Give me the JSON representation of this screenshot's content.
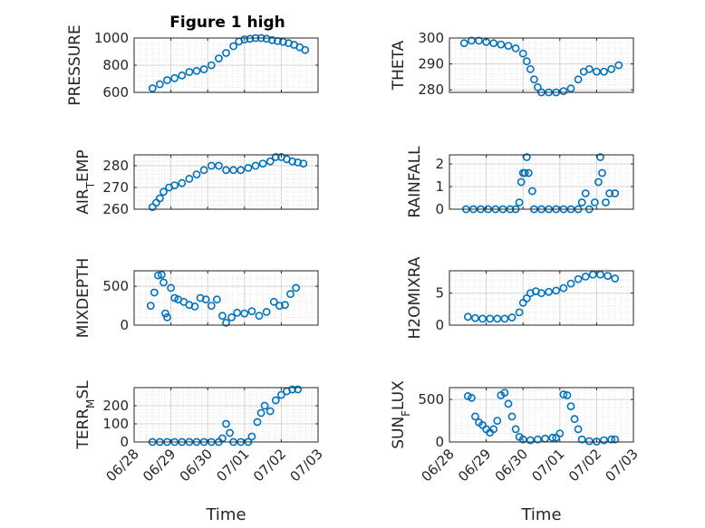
{
  "figure_title": "Figure 1 high",
  "x_label": "Time",
  "x_ticks": [
    "06/28",
    "06/29",
    "06/30",
    "07/01",
    "07/02",
    "07/03"
  ],
  "colors": {
    "marker": "#0072bd",
    "axis": "#262626",
    "grid": "#dcdcdc",
    "background": "#ffffff"
  },
  "chart_data": [
    {
      "type": "scatter",
      "ylabel": "PRESSURE",
      "title": "Figure 1 high",
      "ylim": [
        600,
        1000
      ],
      "yticks": [
        600,
        800,
        1000
      ],
      "xlim": [
        0,
        5
      ],
      "grid": true,
      "series": [
        {
          "values": [
            [
              0.5,
              630
            ],
            [
              0.7,
              660
            ],
            [
              0.9,
              690
            ],
            [
              1.1,
              705
            ],
            [
              1.3,
              725
            ],
            [
              1.5,
              750
            ],
            [
              1.7,
              758
            ],
            [
              1.9,
              770
            ],
            [
              2.1,
              800
            ],
            [
              2.3,
              850
            ],
            [
              2.5,
              890
            ],
            [
              2.7,
              940
            ],
            [
              2.85,
              975
            ],
            [
              3.0,
              990
            ],
            [
              3.15,
              995
            ],
            [
              3.3,
              1000
            ],
            [
              3.45,
              1000
            ],
            [
              3.6,
              995
            ],
            [
              3.75,
              985
            ],
            [
              3.9,
              978
            ],
            [
              4.05,
              972
            ],
            [
              4.2,
              962
            ],
            [
              4.35,
              950
            ],
            [
              4.5,
              932
            ],
            [
              4.65,
              912
            ]
          ]
        }
      ]
    },
    {
      "type": "scatter",
      "ylabel": "THETA",
      "ylim": [
        279,
        300
      ],
      "yticks": [
        280,
        290,
        300
      ],
      "xlim": [
        0,
        5
      ],
      "grid": true,
      "series": [
        {
          "values": [
            [
              0.4,
              298
            ],
            [
              0.6,
              299
            ],
            [
              0.8,
              299
            ],
            [
              1.0,
              298.5
            ],
            [
              1.2,
              298
            ],
            [
              1.4,
              297.5
            ],
            [
              1.6,
              297
            ],
            [
              1.8,
              296
            ],
            [
              2.0,
              294
            ],
            [
              2.1,
              291
            ],
            [
              2.2,
              288
            ],
            [
              2.3,
              284
            ],
            [
              2.4,
              281
            ],
            [
              2.5,
              279
            ],
            [
              2.7,
              279
            ],
            [
              2.9,
              279
            ],
            [
              3.1,
              279.5
            ],
            [
              3.3,
              280.5
            ],
            [
              3.5,
              284
            ],
            [
              3.65,
              287
            ],
            [
              3.8,
              288
            ],
            [
              4.0,
              287
            ],
            [
              4.2,
              287
            ],
            [
              4.4,
              288
            ],
            [
              4.6,
              289.5
            ]
          ]
        }
      ]
    },
    {
      "type": "scatter",
      "ylabel": "AIR_TEMP",
      "ylim": [
        260,
        285
      ],
      "yticks": [
        260,
        270,
        280
      ],
      "xlim": [
        0,
        5
      ],
      "grid": true,
      "series": [
        {
          "values": [
            [
              0.5,
              261
            ],
            [
              0.6,
              263
            ],
            [
              0.7,
              265
            ],
            [
              0.8,
              268
            ],
            [
              0.95,
              270
            ],
            [
              1.1,
              271
            ],
            [
              1.3,
              272
            ],
            [
              1.5,
              274
            ],
            [
              1.7,
              276
            ],
            [
              1.9,
              278
            ],
            [
              2.1,
              280
            ],
            [
              2.3,
              280
            ],
            [
              2.5,
              278
            ],
            [
              2.7,
              278
            ],
            [
              2.9,
              278
            ],
            [
              3.1,
              279
            ],
            [
              3.3,
              280
            ],
            [
              3.5,
              281
            ],
            [
              3.7,
              282
            ],
            [
              3.85,
              284
            ],
            [
              4.0,
              284
            ],
            [
              4.15,
              283
            ],
            [
              4.3,
              282
            ],
            [
              4.45,
              281.5
            ],
            [
              4.6,
              281
            ]
          ]
        }
      ]
    },
    {
      "type": "scatter",
      "ylabel": "RAINFALL",
      "ylim": [
        0,
        2.4
      ],
      "yticks": [
        0,
        1,
        2
      ],
      "xlim": [
        0,
        5
      ],
      "grid": true,
      "series": [
        {
          "values": [
            [
              0.45,
              0
            ],
            [
              0.65,
              0
            ],
            [
              0.85,
              0
            ],
            [
              1.05,
              0
            ],
            [
              1.25,
              0
            ],
            [
              1.45,
              0
            ],
            [
              1.65,
              0
            ],
            [
              1.8,
              0
            ],
            [
              1.9,
              0.3
            ],
            [
              1.95,
              1.2
            ],
            [
              2.0,
              1.6
            ],
            [
              2.05,
              1.6
            ],
            [
              2.1,
              2.3
            ],
            [
              2.15,
              1.6
            ],
            [
              2.25,
              0.8
            ],
            [
              2.3,
              0
            ],
            [
              2.5,
              0
            ],
            [
              2.7,
              0
            ],
            [
              2.9,
              0
            ],
            [
              3.1,
              0
            ],
            [
              3.3,
              0
            ],
            [
              3.5,
              0
            ],
            [
              3.6,
              0.3
            ],
            [
              3.7,
              0.7
            ],
            [
              3.8,
              0
            ],
            [
              3.95,
              0.3
            ],
            [
              4.05,
              1.2
            ],
            [
              4.1,
              2.3
            ],
            [
              4.15,
              1.6
            ],
            [
              4.25,
              0.3
            ],
            [
              4.35,
              0.7
            ],
            [
              4.5,
              0.7
            ]
          ]
        }
      ]
    },
    {
      "type": "scatter",
      "ylabel": "MIXDEPTH",
      "ylim": [
        0,
        700
      ],
      "yticks": [
        0,
        500
      ],
      "xlim": [
        0,
        5
      ],
      "grid": true,
      "series": [
        {
          "values": [
            [
              0.45,
              250
            ],
            [
              0.55,
              420
            ],
            [
              0.65,
              640
            ],
            [
              0.75,
              650
            ],
            [
              0.8,
              550
            ],
            [
              0.85,
              150
            ],
            [
              0.9,
              100
            ],
            [
              1.0,
              480
            ],
            [
              1.1,
              350
            ],
            [
              1.2,
              330
            ],
            [
              1.35,
              300
            ],
            [
              1.5,
              260
            ],
            [
              1.65,
              240
            ],
            [
              1.8,
              350
            ],
            [
              1.95,
              330
            ],
            [
              2.1,
              250
            ],
            [
              2.25,
              330
            ],
            [
              2.4,
              120
            ],
            [
              2.5,
              30
            ],
            [
              2.65,
              100
            ],
            [
              2.8,
              160
            ],
            [
              3.0,
              150
            ],
            [
              3.2,
              180
            ],
            [
              3.4,
              120
            ],
            [
              3.6,
              170
            ],
            [
              3.8,
              300
            ],
            [
              3.95,
              250
            ],
            [
              4.1,
              260
            ],
            [
              4.25,
              400
            ],
            [
              4.4,
              480
            ]
          ]
        }
      ]
    },
    {
      "type": "scatter",
      "ylabel": "H2OMIXRA",
      "ylim": [
        0,
        8.5
      ],
      "yticks": [
        0,
        5
      ],
      "xlim": [
        0,
        5
      ],
      "grid": true,
      "series": [
        {
          "values": [
            [
              0.5,
              1.3
            ],
            [
              0.7,
              1.1
            ],
            [
              0.9,
              1.0
            ],
            [
              1.1,
              1.0
            ],
            [
              1.3,
              1.0
            ],
            [
              1.5,
              1.0
            ],
            [
              1.7,
              1.2
            ],
            [
              1.9,
              2.0
            ],
            [
              2.0,
              3.5
            ],
            [
              2.1,
              4.2
            ],
            [
              2.2,
              5.0
            ],
            [
              2.35,
              5.3
            ],
            [
              2.5,
              5.0
            ],
            [
              2.7,
              5.2
            ],
            [
              2.9,
              5.4
            ],
            [
              3.1,
              5.8
            ],
            [
              3.3,
              6.5
            ],
            [
              3.5,
              7.2
            ],
            [
              3.7,
              7.6
            ],
            [
              3.9,
              7.9
            ],
            [
              4.1,
              7.9
            ],
            [
              4.3,
              7.7
            ],
            [
              4.5,
              7.3
            ]
          ]
        }
      ]
    },
    {
      "type": "scatter",
      "ylabel": "TERR_MSL",
      "ylim": [
        0,
        300
      ],
      "yticks": [
        0,
        100,
        200
      ],
      "xlim": [
        0,
        5
      ],
      "grid": true,
      "series": [
        {
          "values": [
            [
              0.5,
              0
            ],
            [
              0.7,
              0
            ],
            [
              0.9,
              0
            ],
            [
              1.1,
              0
            ],
            [
              1.3,
              0
            ],
            [
              1.5,
              0
            ],
            [
              1.7,
              0
            ],
            [
              1.9,
              0
            ],
            [
              2.1,
              0
            ],
            [
              2.3,
              0
            ],
            [
              2.4,
              20
            ],
            [
              2.5,
              100
            ],
            [
              2.6,
              50
            ],
            [
              2.7,
              0
            ],
            [
              2.9,
              0
            ],
            [
              3.1,
              0
            ],
            [
              3.2,
              30
            ],
            [
              3.35,
              110
            ],
            [
              3.45,
              160
            ],
            [
              3.55,
              200
            ],
            [
              3.7,
              170
            ],
            [
              3.85,
              230
            ],
            [
              4.0,
              260
            ],
            [
              4.15,
              280
            ],
            [
              4.3,
              290
            ],
            [
              4.45,
              290
            ]
          ]
        }
      ]
    },
    {
      "type": "scatter",
      "ylabel": "SUN_FLUX",
      "ylim": [
        0,
        640
      ],
      "yticks": [
        0,
        500
      ],
      "xlim": [
        0,
        5
      ],
      "grid": true,
      "series": [
        {
          "values": [
            [
              0.5,
              540
            ],
            [
              0.6,
              520
            ],
            [
              0.7,
              300
            ],
            [
              0.8,
              230
            ],
            [
              0.9,
              200
            ],
            [
              1.0,
              150
            ],
            [
              1.1,
              110
            ],
            [
              1.2,
              150
            ],
            [
              1.3,
              250
            ],
            [
              1.4,
              550
            ],
            [
              1.5,
              580
            ],
            [
              1.6,
              450
            ],
            [
              1.7,
              300
            ],
            [
              1.8,
              150
            ],
            [
              1.9,
              60
            ],
            [
              2.0,
              30
            ],
            [
              2.2,
              20
            ],
            [
              2.4,
              30
            ],
            [
              2.6,
              40
            ],
            [
              2.8,
              50
            ],
            [
              2.9,
              50
            ],
            [
              3.0,
              100
            ],
            [
              3.1,
              560
            ],
            [
              3.2,
              550
            ],
            [
              3.3,
              420
            ],
            [
              3.4,
              270
            ],
            [
              3.5,
              150
            ],
            [
              3.6,
              30
            ],
            [
              3.8,
              10
            ],
            [
              4.0,
              5
            ],
            [
              4.2,
              20
            ],
            [
              4.4,
              30
            ],
            [
              4.5,
              30
            ]
          ]
        }
      ]
    }
  ]
}
